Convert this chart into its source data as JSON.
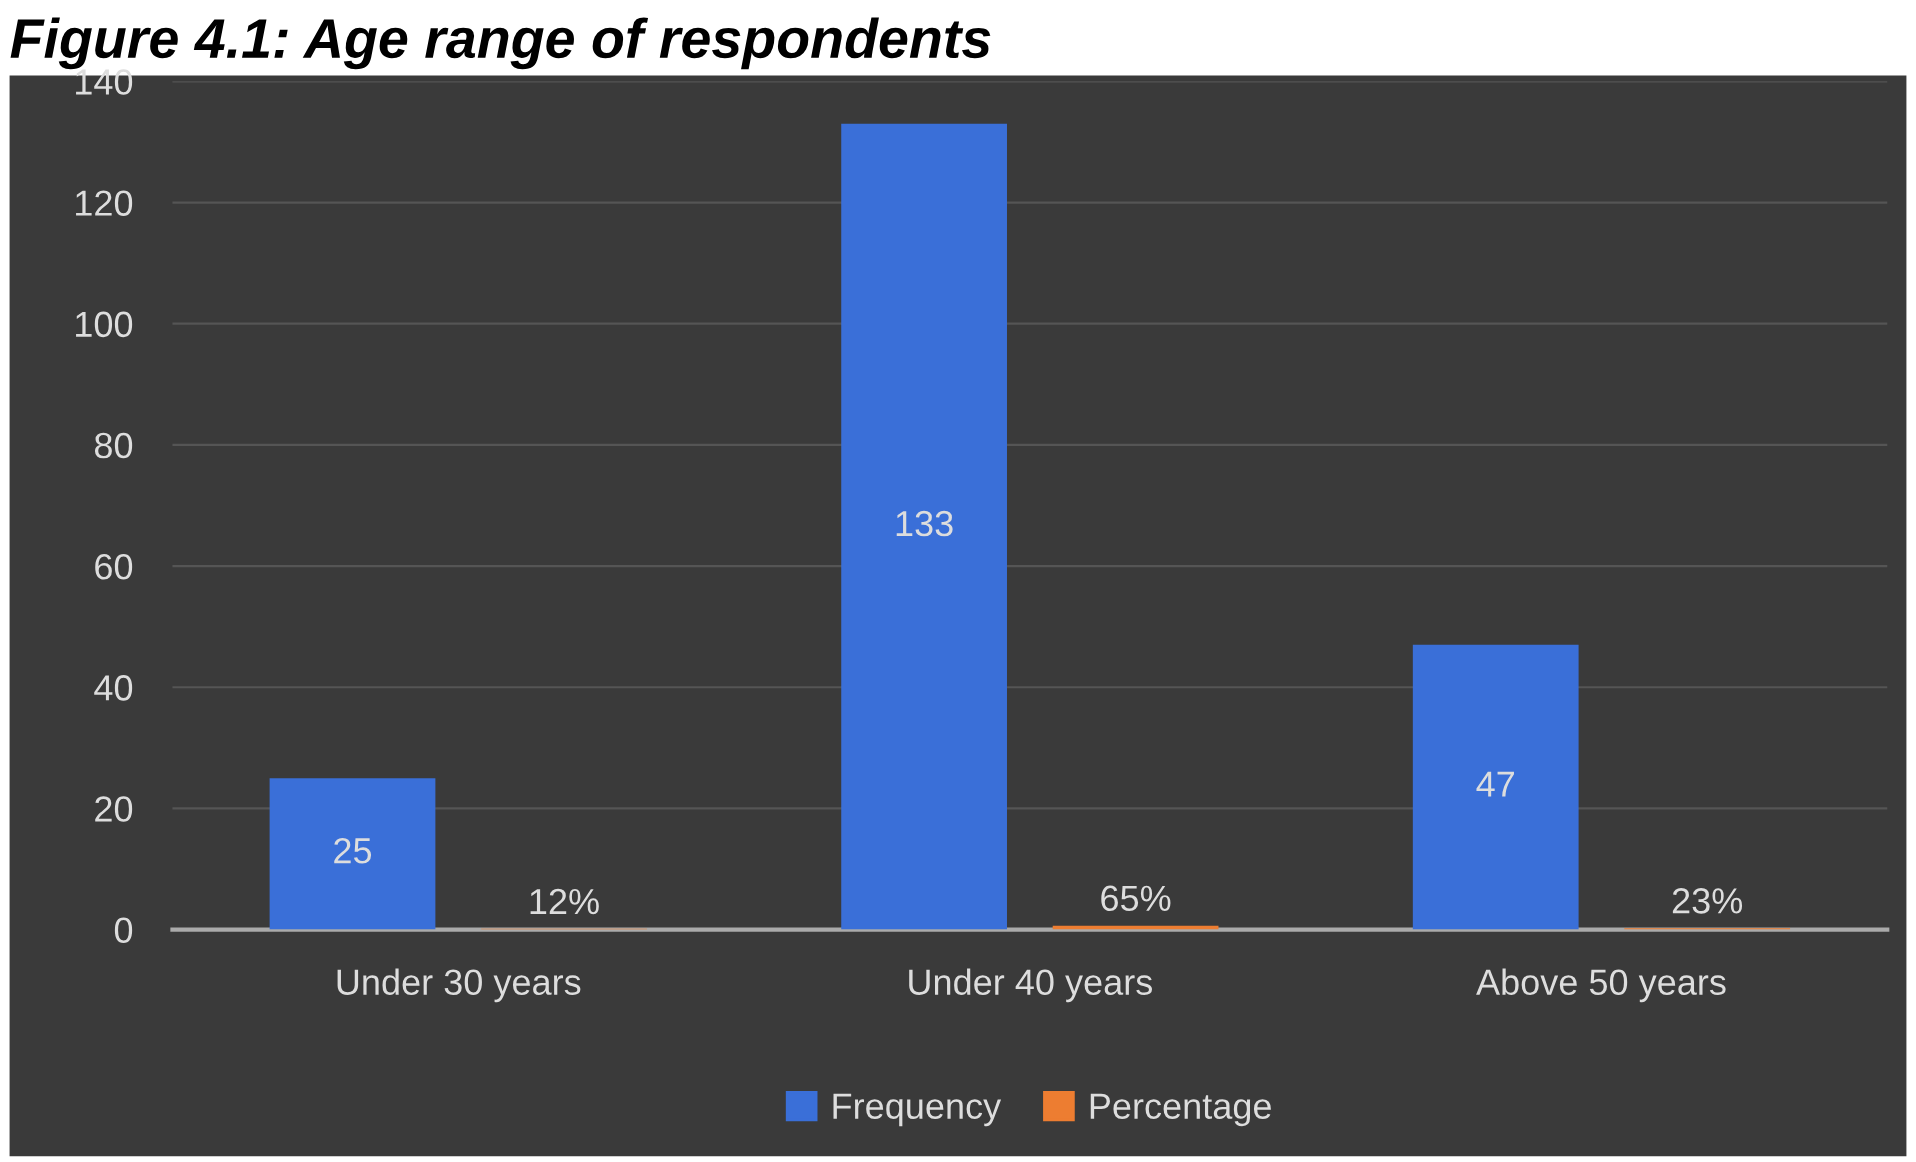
{
  "chart_data": {
    "type": "bar",
    "title": "Figure 4.1: Age range of respondents",
    "categories": [
      "Under 30 years",
      "Under 40 years",
      "Above 50 years"
    ],
    "series": [
      {
        "name": "Frequency",
        "color": "#3a6fd8",
        "values": [
          25,
          133,
          47
        ],
        "value_labels": [
          "25",
          "133",
          "47"
        ]
      },
      {
        "name": "Percentage",
        "color": "#ed7d31",
        "values": [
          0.12,
          0.65,
          0.23
        ],
        "value_labels": [
          "12%",
          "65%",
          "23%"
        ]
      }
    ],
    "ylim": [
      0,
      140
    ],
    "yticks": [
      0,
      20,
      40,
      60,
      80,
      100,
      120,
      140
    ],
    "grid": "y",
    "legend": "bottom"
  }
}
